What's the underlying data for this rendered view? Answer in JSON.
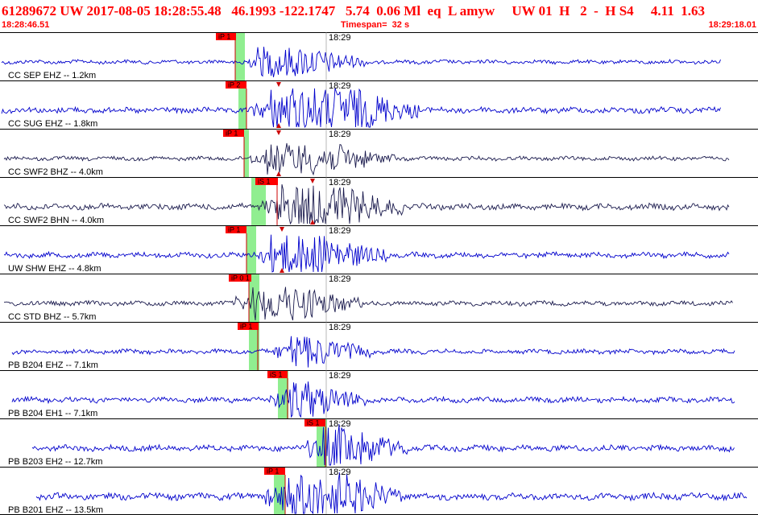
{
  "header": {
    "title": "61289672 UW 2017-08-05 18:28:55.48   46.1993 -122.1747   5.74  0.06 Ml  eq  L amyw     UW 01  H   2  -  H S4     4.11  1.63",
    "start_time": "18:28:46.51",
    "timespan": "Timespan=  32 s",
    "end_time": "18:29:18.01"
  },
  "colors": {
    "header_text": "#ff0000",
    "trace_high_gain": "#0000cc",
    "trace_broadband": "#1a1a4d",
    "pick_window": "#90ee90",
    "pick_line": "#cc0000",
    "pick_flag": "#ff0000",
    "separator": "#000000"
  },
  "traces": [
    {
      "label": "CC SEP EHZ -- 1.2km",
      "minute_tick": "18:29",
      "color": "trace_high_gain",
      "picks": [
        {
          "text": "iP 1"
        }
      ],
      "s_marker": false
    },
    {
      "label": "CC SUG EHZ -- 1.8km",
      "minute_tick": "18:29",
      "color": "trace_high_gain",
      "picks": [
        {
          "text": "iP 2"
        }
      ],
      "s_marker": true
    },
    {
      "label": "CC SWF2 BHZ -- 4.0km",
      "minute_tick": "18:29",
      "color": "trace_broadband",
      "picks": [
        {
          "text": "iP 1"
        }
      ],
      "s_marker": true
    },
    {
      "label": "CC SWF2 BHN -- 4.0km",
      "minute_tick": "18:29",
      "color": "trace_broadband",
      "picks": [
        {
          "text": "iS 1"
        }
      ],
      "s_marker": true
    },
    {
      "label": "UW SHW EHZ -- 4.8km",
      "minute_tick": "18:29",
      "color": "trace_high_gain",
      "picks": [
        {
          "text": "iP 1"
        }
      ],
      "s_marker": true
    },
    {
      "label": "CC STD BHZ -- 5.7km",
      "minute_tick": "18:29",
      "color": "trace_broadband",
      "picks": [
        {
          "text": "iP 0 1"
        }
      ],
      "s_marker": false
    },
    {
      "label": "PB B204 EHZ -- 7.1km",
      "minute_tick": "18:29",
      "color": "trace_high_gain",
      "picks": [
        {
          "text": "iP 1"
        }
      ],
      "s_marker": false
    },
    {
      "label": "PB B204 EH1 -- 7.1km",
      "minute_tick": "18:29",
      "color": "trace_high_gain",
      "picks": [
        {
          "text": "iS 1"
        }
      ],
      "s_marker": false
    },
    {
      "label": "PB B203 EH2 -- 12.7km",
      "minute_tick": "18:29",
      "color": "trace_high_gain",
      "picks": [
        {
          "text": "iS 1"
        }
      ],
      "s_marker": false
    },
    {
      "label": "PB B201 EHZ -- 13.5km",
      "minute_tick": "18:29",
      "color": "trace_high_gain",
      "picks": [
        {
          "text": "iP 1"
        }
      ],
      "s_marker": false
    }
  ]
}
